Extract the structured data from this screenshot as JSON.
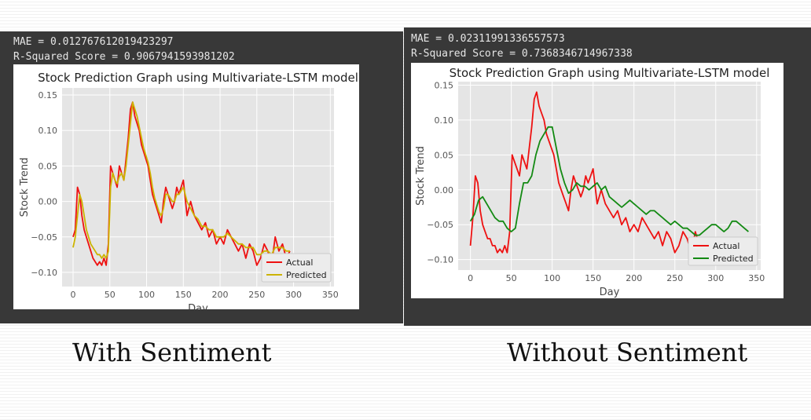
{
  "colors": {
    "actual": "#ee1111",
    "predicted_left": "#ccb300",
    "predicted_right": "#138a13",
    "plot_bg": "#e5e5e5",
    "panel_bg": "#383838"
  },
  "captions": {
    "left": "With Sentiment",
    "right": "Without Sentiment"
  },
  "left": {
    "mae": "MAE = 0.012767612019423297",
    "r2": "R-Squared Score = 0.9067941593981202"
  },
  "right": {
    "mae": "MAE = 0.02311991336557573",
    "r2": "R-Squared Score = 0.7368346714967338"
  },
  "chart_data": [
    {
      "type": "line",
      "title": "Stock Prediction Graph using Multivariate-LSTM model",
      "xlabel": "Day",
      "ylabel": "Stock Trend",
      "xlim": [
        -15,
        355
      ],
      "ylim": [
        -0.12,
        0.16
      ],
      "xticks": [
        0,
        50,
        100,
        150,
        200,
        250,
        300,
        350
      ],
      "xtick_labels": [
        "0",
        "50",
        "100",
        "150",
        "200",
        "250",
        "300",
        "350"
      ],
      "yticks": [
        -0.1,
        -0.05,
        0.0,
        0.05,
        0.1,
        0.15
      ],
      "ytick_labels": [
        "−0.10",
        "−0.05",
        "0.00",
        "0.05",
        "0.10",
        "0.15"
      ],
      "grid": true,
      "legend": "lower-right",
      "series": [
        {
          "name": "Actual",
          "color": "#ee1111",
          "x": [
            0,
            3,
            6,
            9,
            12,
            15,
            18,
            21,
            24,
            27,
            30,
            33,
            36,
            39,
            42,
            45,
            48,
            51,
            54,
            57,
            60,
            63,
            66,
            69,
            72,
            75,
            78,
            81,
            84,
            87,
            90,
            93,
            96,
            99,
            102,
            105,
            108,
            111,
            114,
            117,
            120,
            123,
            126,
            129,
            132,
            135,
            138,
            141,
            144,
            147,
            150,
            155,
            160,
            165,
            170,
            175,
            180,
            185,
            190,
            195,
            200,
            205,
            210,
            215,
            220,
            225,
            230,
            235,
            240,
            245,
            250,
            255,
            260,
            265,
            270,
            275,
            280,
            285,
            290,
            295
          ],
          "y": [
            -0.05,
            -0.04,
            0.02,
            0.01,
            -0.02,
            -0.04,
            -0.05,
            -0.06,
            -0.07,
            -0.08,
            -0.085,
            -0.09,
            -0.085,
            -0.09,
            -0.08,
            -0.09,
            -0.06,
            0.05,
            0.04,
            0.03,
            0.02,
            0.05,
            0.04,
            0.03,
            0.06,
            0.09,
            0.13,
            0.14,
            0.12,
            0.11,
            0.1,
            0.08,
            0.07,
            0.06,
            0.05,
            0.03,
            0.01,
            0.0,
            -0.01,
            -0.02,
            -0.03,
            0.0,
            0.02,
            0.01,
            0.0,
            -0.01,
            0.0,
            0.02,
            0.01,
            0.02,
            0.03,
            -0.02,
            0.0,
            -0.02,
            -0.03,
            -0.04,
            -0.03,
            -0.05,
            -0.04,
            -0.06,
            -0.05,
            -0.06,
            -0.04,
            -0.05,
            -0.06,
            -0.07,
            -0.06,
            -0.08,
            -0.06,
            -0.07,
            -0.09,
            -0.08,
            -0.06,
            -0.07,
            -0.09,
            -0.05,
            -0.07,
            -0.06,
            -0.08,
            -0.07
          ]
        },
        {
          "name": "Predicted",
          "color": "#ccb300",
          "x": [
            0,
            3,
            6,
            9,
            12,
            15,
            18,
            21,
            24,
            27,
            30,
            33,
            36,
            39,
            42,
            45,
            48,
            51,
            54,
            57,
            60,
            63,
            66,
            69,
            72,
            75,
            78,
            81,
            84,
            87,
            90,
            93,
            96,
            99,
            102,
            105,
            108,
            111,
            114,
            117,
            120,
            123,
            126,
            129,
            132,
            135,
            138,
            141,
            144,
            147,
            150,
            155,
            160,
            165,
            170,
            175,
            180,
            185,
            190,
            195,
            200,
            205,
            210,
            215,
            220,
            225,
            230,
            235,
            240,
            245,
            250,
            255,
            260,
            265,
            270,
            275,
            280,
            285,
            290,
            295
          ],
          "y": [
            -0.065,
            -0.05,
            -0.02,
            0.01,
            0.0,
            -0.02,
            -0.04,
            -0.05,
            -0.06,
            -0.065,
            -0.07,
            -0.075,
            -0.075,
            -0.08,
            -0.075,
            -0.08,
            -0.07,
            0.02,
            0.04,
            0.03,
            0.025,
            0.035,
            0.04,
            0.03,
            0.05,
            0.08,
            0.11,
            0.14,
            0.13,
            0.12,
            0.105,
            0.09,
            0.075,
            0.065,
            0.055,
            0.04,
            0.02,
            0.005,
            -0.005,
            -0.015,
            -0.02,
            -0.01,
            0.01,
            0.01,
            0.005,
            0.0,
            0.0,
            0.01,
            0.01,
            0.015,
            0.02,
            0.0,
            -0.01,
            -0.02,
            -0.025,
            -0.035,
            -0.035,
            -0.04,
            -0.04,
            -0.05,
            -0.05,
            -0.05,
            -0.045,
            -0.05,
            -0.055,
            -0.06,
            -0.06,
            -0.065,
            -0.065,
            -0.065,
            -0.075,
            -0.075,
            -0.07,
            -0.07,
            -0.075,
            -0.065,
            -0.065,
            -0.065,
            -0.07,
            -0.07
          ]
        }
      ]
    },
    {
      "type": "line",
      "title": "Stock Prediction Graph using Multivariate-LSTM model",
      "xlabel": "Day",
      "ylabel": "Stock Trend",
      "xlim": [
        -15,
        355
      ],
      "ylim": [
        -0.115,
        0.155
      ],
      "xticks": [
        0,
        50,
        100,
        150,
        200,
        250,
        300,
        350
      ],
      "xtick_labels": [
        "0",
        "50",
        "100",
        "150",
        "200",
        "250",
        "300",
        "350"
      ],
      "yticks": [
        -0.1,
        -0.05,
        0.0,
        0.05,
        0.1,
        0.15
      ],
      "ytick_labels": [
        "−0.10",
        "−0.05",
        "0.00",
        "0.05",
        "0.10",
        "0.15"
      ],
      "grid": true,
      "legend": "lower-right",
      "series": [
        {
          "name": "Actual",
          "color": "#ee1111",
          "x": [
            0,
            3,
            6,
            9,
            12,
            15,
            18,
            21,
            24,
            27,
            30,
            33,
            36,
            39,
            42,
            45,
            48,
            51,
            54,
            57,
            60,
            63,
            66,
            69,
            72,
            75,
            78,
            81,
            84,
            87,
            90,
            93,
            96,
            99,
            102,
            105,
            108,
            111,
            114,
            117,
            120,
            123,
            126,
            129,
            132,
            135,
            138,
            141,
            144,
            147,
            150,
            155,
            160,
            165,
            170,
            175,
            180,
            185,
            190,
            195,
            200,
            205,
            210,
            215,
            220,
            225,
            230,
            235,
            240,
            245,
            250,
            255,
            260,
            265,
            270,
            275,
            280,
            285,
            290
          ],
          "y": [
            -0.08,
            -0.04,
            0.02,
            0.01,
            -0.03,
            -0.05,
            -0.06,
            -0.07,
            -0.07,
            -0.08,
            -0.08,
            -0.09,
            -0.085,
            -0.09,
            -0.08,
            -0.09,
            -0.06,
            0.05,
            0.04,
            0.03,
            0.02,
            0.05,
            0.04,
            0.03,
            0.06,
            0.09,
            0.13,
            0.14,
            0.12,
            0.11,
            0.1,
            0.08,
            0.07,
            0.06,
            0.05,
            0.03,
            0.01,
            0.0,
            -0.01,
            -0.02,
            -0.03,
            0.0,
            0.02,
            0.01,
            0.0,
            -0.01,
            0.0,
            0.02,
            0.01,
            0.02,
            0.03,
            -0.02,
            0.0,
            -0.02,
            -0.03,
            -0.04,
            -0.03,
            -0.05,
            -0.04,
            -0.06,
            -0.05,
            -0.06,
            -0.04,
            -0.05,
            -0.06,
            -0.07,
            -0.06,
            -0.08,
            -0.06,
            -0.07,
            -0.09,
            -0.08,
            -0.06,
            -0.07,
            -0.09,
            -0.06,
            -0.08,
            -0.07,
            -0.09
          ]
        },
        {
          "name": "Predicted",
          "color": "#138a13",
          "x": [
            0,
            5,
            10,
            15,
            20,
            25,
            30,
            35,
            40,
            45,
            50,
            55,
            60,
            65,
            70,
            75,
            80,
            85,
            90,
            95,
            100,
            105,
            110,
            115,
            120,
            125,
            130,
            135,
            140,
            145,
            150,
            155,
            160,
            165,
            170,
            175,
            180,
            185,
            190,
            195,
            200,
            205,
            210,
            215,
            220,
            225,
            230,
            235,
            240,
            245,
            250,
            255,
            260,
            265,
            270,
            275,
            280,
            285,
            290,
            295,
            300,
            305,
            310,
            315,
            320,
            325,
            330,
            335,
            340
          ],
          "y": [
            -0.045,
            -0.035,
            -0.015,
            -0.01,
            -0.02,
            -0.03,
            -0.04,
            -0.045,
            -0.045,
            -0.055,
            -0.06,
            -0.055,
            -0.02,
            0.01,
            0.01,
            0.02,
            0.05,
            0.07,
            0.08,
            0.09,
            0.09,
            0.06,
            0.03,
            0.01,
            -0.005,
            0.0,
            0.01,
            0.005,
            0.005,
            0.0,
            0.005,
            0.01,
            0.0,
            0.005,
            -0.01,
            -0.015,
            -0.02,
            -0.025,
            -0.02,
            -0.015,
            -0.02,
            -0.025,
            -0.03,
            -0.035,
            -0.03,
            -0.03,
            -0.035,
            -0.04,
            -0.045,
            -0.05,
            -0.045,
            -0.05,
            -0.055,
            -0.055,
            -0.06,
            -0.065,
            -0.065,
            -0.06,
            -0.055,
            -0.05,
            -0.05,
            -0.055,
            -0.06,
            -0.055,
            -0.045,
            -0.045,
            -0.05,
            -0.055,
            -0.06
          ]
        }
      ]
    }
  ]
}
